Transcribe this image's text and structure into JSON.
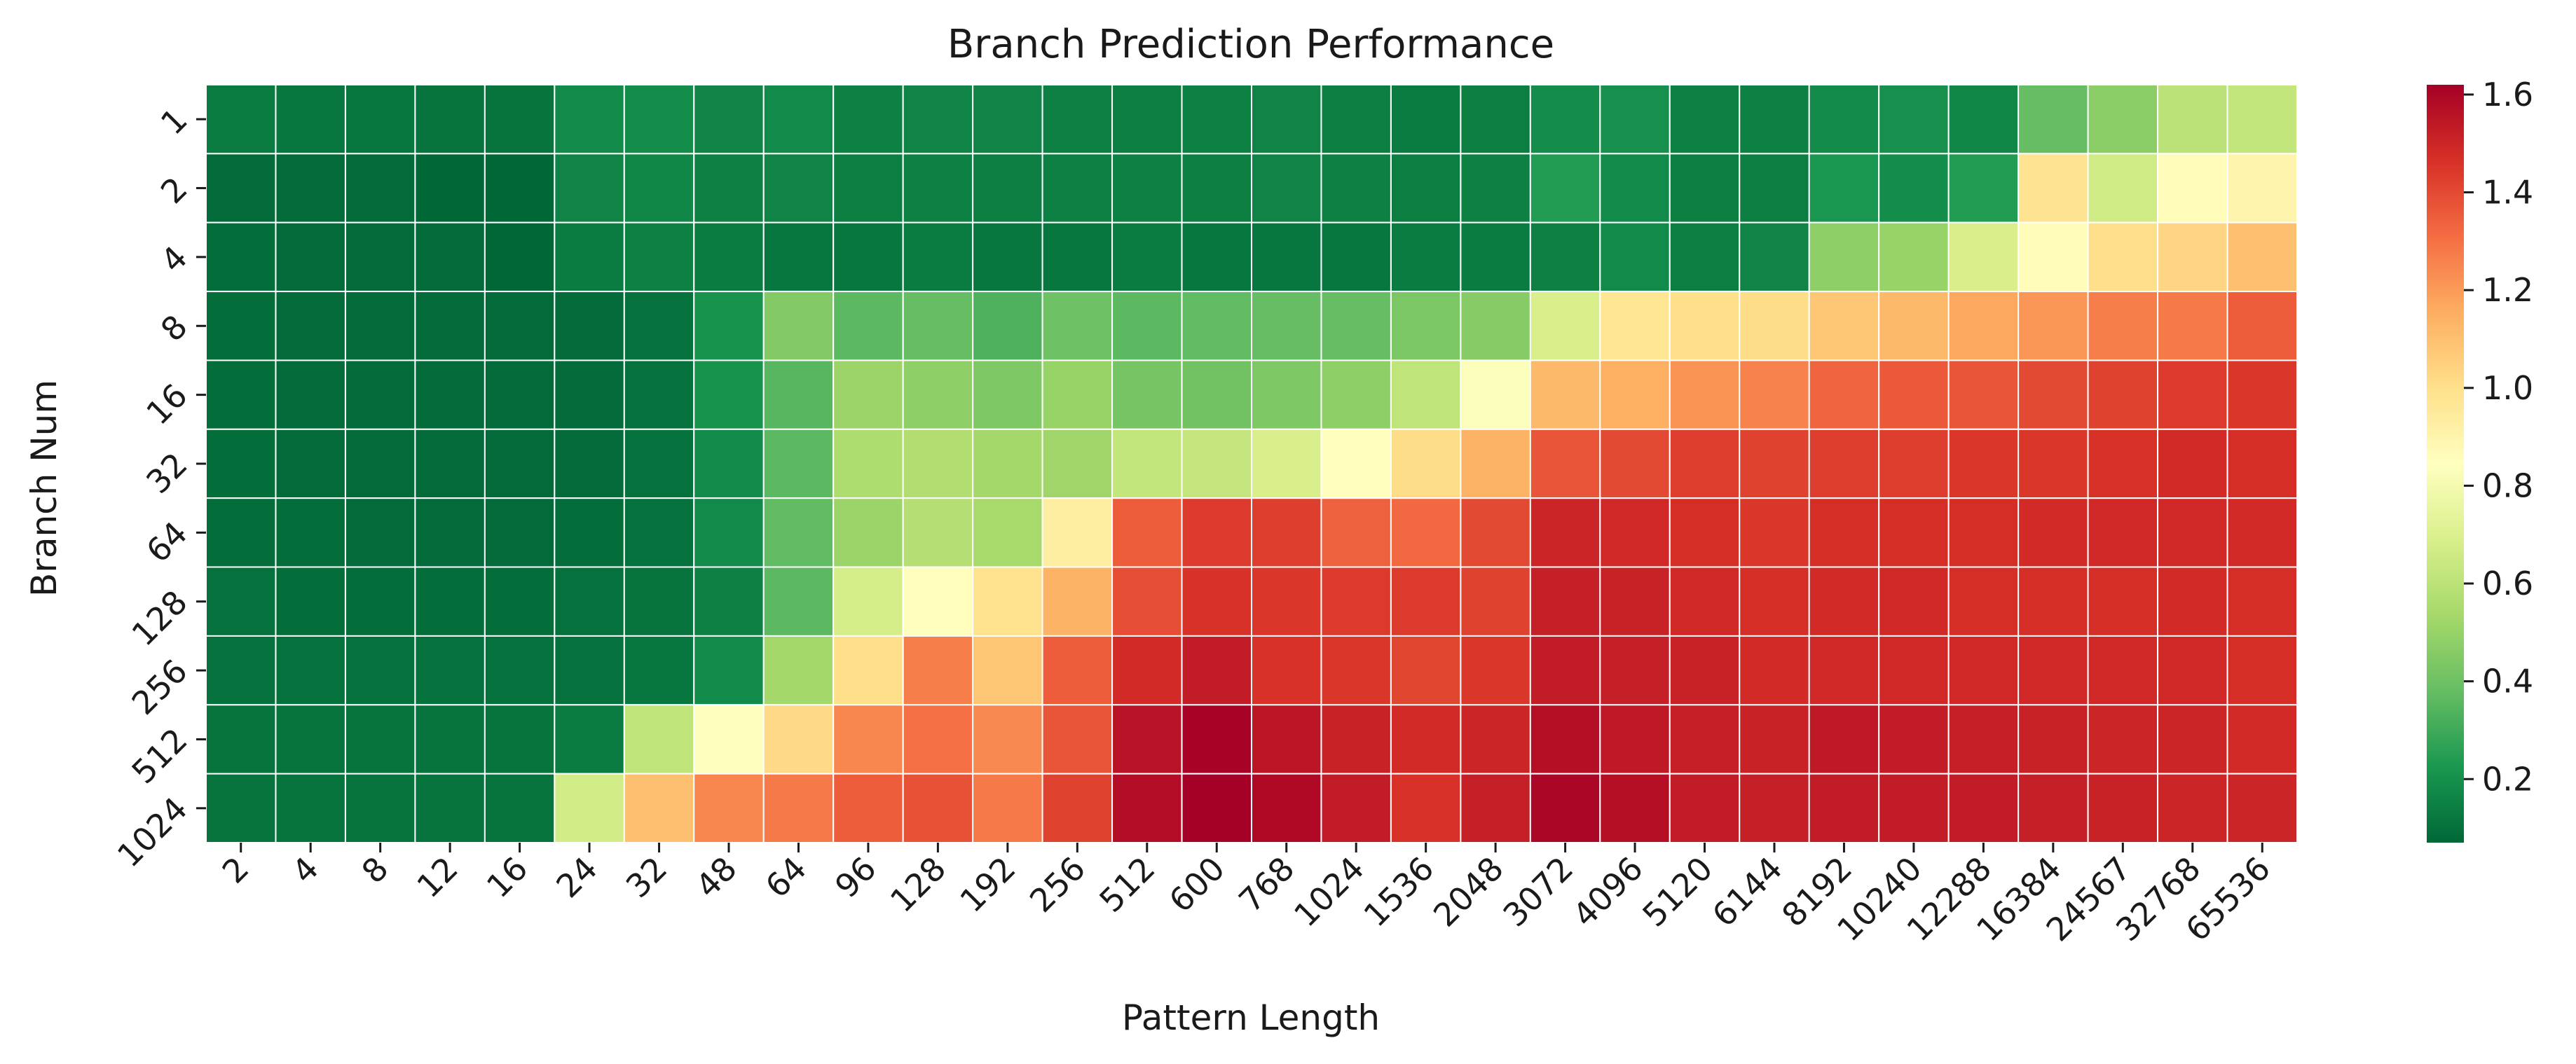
{
  "chart_data": {
    "type": "heatmap",
    "title": "Branch Prediction Performance",
    "xlabel": "Pattern Length",
    "ylabel": "Branch Num",
    "x_categories": [
      "2",
      "4",
      "8",
      "12",
      "16",
      "24",
      "32",
      "48",
      "64",
      "96",
      "128",
      "192",
      "256",
      "512",
      "600",
      "768",
      "1024",
      "1536",
      "2048",
      "3072",
      "4096",
      "5120",
      "6144",
      "8192",
      "10240",
      "12288",
      "16384",
      "24567",
      "32768",
      "65536"
    ],
    "y_categories": [
      "1",
      "2",
      "4",
      "8",
      "16",
      "32",
      "64",
      "128",
      "256",
      "512",
      "1024"
    ],
    "values": [
      [
        0.13,
        0.12,
        0.12,
        0.11,
        0.11,
        0.18,
        0.19,
        0.16,
        0.18,
        0.15,
        0.16,
        0.16,
        0.15,
        0.14,
        0.15,
        0.16,
        0.14,
        0.13,
        0.14,
        0.19,
        0.2,
        0.15,
        0.15,
        0.18,
        0.2,
        0.17,
        0.38,
        0.47,
        0.6,
        0.62
      ],
      [
        0.08,
        0.08,
        0.08,
        0.07,
        0.07,
        0.16,
        0.17,
        0.15,
        0.16,
        0.14,
        0.15,
        0.14,
        0.15,
        0.15,
        0.14,
        0.16,
        0.15,
        0.14,
        0.15,
        0.24,
        0.18,
        0.14,
        0.14,
        0.22,
        0.19,
        0.24,
        0.98,
        0.66,
        0.86,
        0.9
      ],
      [
        0.09,
        0.08,
        0.08,
        0.08,
        0.07,
        0.13,
        0.15,
        0.13,
        0.12,
        0.12,
        0.13,
        0.12,
        0.12,
        0.13,
        0.12,
        0.12,
        0.12,
        0.13,
        0.13,
        0.15,
        0.18,
        0.14,
        0.16,
        0.48,
        0.5,
        0.69,
        0.86,
        1.0,
        1.03,
        1.1
      ],
      [
        0.09,
        0.08,
        0.08,
        0.08,
        0.08,
        0.08,
        0.1,
        0.21,
        0.45,
        0.36,
        0.38,
        0.33,
        0.4,
        0.36,
        0.37,
        0.38,
        0.38,
        0.43,
        0.46,
        0.69,
        0.97,
        1.0,
        1.01,
        1.08,
        1.12,
        1.17,
        1.21,
        1.27,
        1.28,
        1.35
      ],
      [
        0.09,
        0.08,
        0.08,
        0.08,
        0.08,
        0.08,
        0.1,
        0.21,
        0.35,
        0.51,
        0.48,
        0.44,
        0.5,
        0.42,
        0.41,
        0.44,
        0.48,
        0.61,
        0.83,
        1.12,
        1.15,
        1.22,
        1.26,
        1.33,
        1.36,
        1.37,
        1.4,
        1.42,
        1.44,
        1.45
      ],
      [
        0.09,
        0.08,
        0.08,
        0.08,
        0.08,
        0.08,
        0.1,
        0.18,
        0.36,
        0.56,
        0.57,
        0.53,
        0.52,
        0.62,
        0.63,
        0.69,
        0.85,
        1.01,
        1.14,
        1.37,
        1.4,
        1.43,
        1.42,
        1.43,
        1.43,
        1.45,
        1.45,
        1.46,
        1.48,
        1.47
      ],
      [
        0.09,
        0.09,
        0.08,
        0.08,
        0.08,
        0.09,
        0.1,
        0.18,
        0.37,
        0.51,
        0.58,
        0.54,
        0.93,
        1.35,
        1.44,
        1.43,
        1.34,
        1.32,
        1.4,
        1.5,
        1.49,
        1.47,
        1.45,
        1.47,
        1.47,
        1.47,
        1.48,
        1.49,
        1.49,
        1.48
      ],
      [
        0.1,
        0.09,
        0.09,
        0.09,
        0.09,
        0.1,
        0.11,
        0.15,
        0.36,
        0.68,
        0.85,
        0.99,
        1.14,
        1.39,
        1.46,
        1.45,
        1.44,
        1.44,
        1.42,
        1.52,
        1.51,
        1.49,
        1.47,
        1.48,
        1.49,
        1.47,
        1.47,
        1.47,
        1.48,
        1.47
      ],
      [
        0.1,
        0.1,
        0.1,
        0.1,
        0.1,
        0.1,
        0.12,
        0.18,
        0.53,
        1.0,
        1.27,
        1.08,
        1.35,
        1.48,
        1.53,
        1.46,
        1.45,
        1.41,
        1.45,
        1.53,
        1.52,
        1.51,
        1.48,
        1.49,
        1.49,
        1.49,
        1.49,
        1.49,
        1.49,
        1.47
      ],
      [
        0.11,
        0.11,
        0.11,
        0.11,
        0.11,
        0.13,
        0.61,
        0.84,
        1.02,
        1.25,
        1.3,
        1.24,
        1.37,
        1.56,
        1.61,
        1.55,
        1.51,
        1.48,
        1.5,
        1.57,
        1.54,
        1.52,
        1.51,
        1.54,
        1.53,
        1.52,
        1.51,
        1.5,
        1.5,
        1.48
      ],
      [
        0.11,
        0.11,
        0.11,
        0.11,
        0.11,
        0.67,
        1.1,
        1.25,
        1.28,
        1.35,
        1.38,
        1.28,
        1.42,
        1.58,
        1.62,
        1.59,
        1.53,
        1.46,
        1.52,
        1.6,
        1.57,
        1.53,
        1.52,
        1.53,
        1.53,
        1.53,
        1.52,
        1.51,
        1.5,
        1.5
      ]
    ],
    "colorbar": {
      "colormap": "RdYlGn_r",
      "vmin": 0.07,
      "vmax": 1.62,
      "ticks": [
        "0.2",
        "0.4",
        "0.6",
        "0.8",
        "1.0",
        "1.2",
        "1.4",
        "1.6"
      ],
      "tick_values": [
        0.2,
        0.4,
        0.6,
        0.8,
        1.0,
        1.2,
        1.4,
        1.6
      ]
    },
    "grid": false,
    "legend": "colorbar-right"
  }
}
